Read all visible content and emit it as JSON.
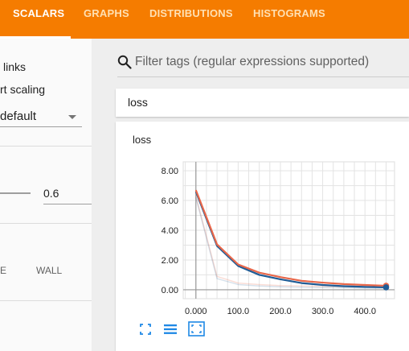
{
  "tabs": [
    {
      "label": "SCALARS",
      "active": true
    },
    {
      "label": "GRAPHS",
      "active": false
    },
    {
      "label": "DISTRIBUTIONS",
      "active": false
    },
    {
      "label": "HISTOGRAMS",
      "active": false
    }
  ],
  "sidebar": {
    "show_data_links_label": "links",
    "ignore_outliers_label": "rt scaling",
    "tooltip_sorting_value": "default",
    "smoothing_value": "0.6",
    "horizontal_axis_options": [
      "E",
      "WALL"
    ]
  },
  "filter": {
    "placeholder": "Filter tags (regular expressions supported)"
  },
  "tag_group": {
    "title": "loss"
  },
  "chart_card": {
    "title": "loss",
    "toolbar_icons": [
      "fullscreen-icon",
      "data-list-icon",
      "fit-domain-icon"
    ]
  },
  "colors": {
    "accent": "#f57c00",
    "series_orange": "#e8674a",
    "series_blue": "#1f5c96"
  },
  "chart_data": {
    "type": "line",
    "title": "loss",
    "xlabel": "",
    "ylabel": "",
    "xlim": [
      -30,
      470
    ],
    "ylim": [
      -0.6,
      8.6
    ],
    "x_ticks": [
      "0.000",
      "100.0",
      "200.0",
      "300.0",
      "400.0"
    ],
    "y_ticks": [
      "8.00",
      "6.00",
      "4.00",
      "2.00",
      "0.00"
    ],
    "grid": true,
    "series": [
      {
        "x": [
          0,
          50,
          100,
          150,
          200,
          250,
          300,
          350,
          400,
          450
        ],
        "values": [
          6.7,
          3.05,
          1.7,
          1.15,
          0.85,
          0.6,
          0.48,
          0.38,
          0.32,
          0.27
        ]
      },
      {
        "x": [
          0,
          50,
          100,
          150,
          200,
          250,
          300,
          350,
          400,
          450
        ],
        "values": [
          6.6,
          2.95,
          1.6,
          1.0,
          0.7,
          0.45,
          0.32,
          0.24,
          0.19,
          0.16
        ]
      }
    ],
    "smoothed_raw_series": [
      {
        "x": [
          0,
          50,
          100,
          150,
          200,
          250,
          300,
          350,
          400,
          450
        ],
        "values": [
          6.3,
          0.9,
          0.45,
          0.35,
          0.28,
          0.25,
          0.22,
          0.2,
          0.18,
          0.17
        ]
      },
      {
        "x": [
          0,
          50,
          100,
          150,
          200,
          250,
          300,
          350,
          400,
          450
        ],
        "values": [
          6.2,
          0.75,
          0.35,
          0.25,
          0.2,
          0.17,
          0.15,
          0.13,
          0.12,
          0.11
        ]
      }
    ]
  }
}
